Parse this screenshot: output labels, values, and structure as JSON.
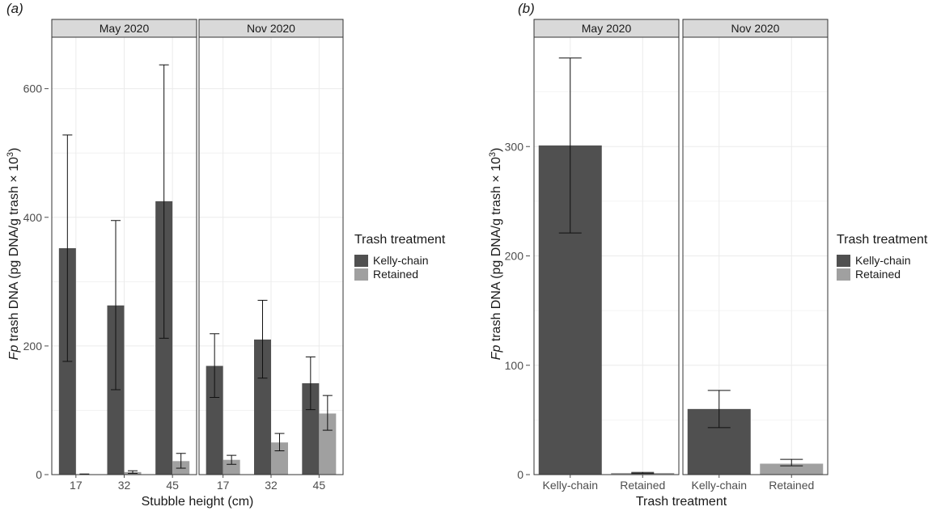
{
  "colors": {
    "kelly": "#505050",
    "retained": "#a0a0a0",
    "strip": "#d9d9d9",
    "grid": "#ebebeb",
    "text": "#1a1a1a",
    "axis": "#4d4d4d"
  },
  "panel_a": {
    "label": "(a)",
    "y_label_italic": "Fp",
    "y_label_rest": " trash DNA (pg DNA/g trash × 10",
    "y_label_sup": "3",
    "y_label_end": ")",
    "x_label": "Stubble height (cm)",
    "legend": {
      "title": "Trash treatment",
      "items": [
        "Kelly-chain",
        "Retained"
      ]
    }
  },
  "panel_b": {
    "label": "(b)",
    "y_label_italic": "Fp",
    "y_label_rest": " trash DNA (pg DNA/g trash × 10",
    "y_label_sup": "3",
    "y_label_end": ")",
    "x_label": "Trash treatment",
    "legend": {
      "title": "Trash treatment",
      "items": [
        "Kelly-chain",
        "Retained"
      ]
    }
  },
  "chart_data": [
    {
      "type": "bar",
      "id": "a",
      "title": "(a)",
      "xlabel": "Stubble height (cm)",
      "ylabel": "Fp trash DNA (pg DNA/g trash × 10^3)",
      "ylim": [
        0,
        680
      ],
      "yticks": [
        0,
        200,
        400,
        600
      ],
      "legend": {
        "title": "Trash treatment",
        "entries": [
          "Kelly-chain",
          "Retained"
        ],
        "position": "right"
      },
      "facets": [
        {
          "strip": "May 2020",
          "categories": [
            "17",
            "32",
            "45"
          ],
          "series": [
            {
              "name": "Kelly-chain",
              "values": [
                352,
                263,
                425
              ],
              "err_low": [
                176,
                132,
                212
              ],
              "err_high": [
                528,
                395,
                637
              ]
            },
            {
              "name": "Retained",
              "values": [
                0.5,
                4,
                21
              ],
              "err_low": [
                0,
                2,
                10
              ],
              "err_high": [
                1,
                6,
                33
              ]
            }
          ]
        },
        {
          "strip": "Nov 2020",
          "categories": [
            "17",
            "32",
            "45"
          ],
          "series": [
            {
              "name": "Kelly-chain",
              "values": [
                169,
                210,
                142
              ],
              "err_low": [
                120,
                150,
                101
              ],
              "err_high": [
                219,
                271,
                183
              ]
            },
            {
              "name": "Retained",
              "values": [
                23,
                50,
                95
              ],
              "err_low": [
                16,
                37,
                69
              ],
              "err_high": [
                30,
                64,
                123
              ]
            }
          ]
        }
      ]
    },
    {
      "type": "bar",
      "id": "b",
      "title": "(b)",
      "xlabel": "Trash treatment",
      "ylabel": "Fp trash DNA (pg DNA/g trash × 10^3)",
      "ylim": [
        0,
        400
      ],
      "yticks": [
        0,
        100,
        200,
        300
      ],
      "legend": {
        "title": "Trash treatment",
        "entries": [
          "Kelly-chain",
          "Retained"
        ],
        "position": "right"
      },
      "facets": [
        {
          "strip": "May 2020",
          "categories": [
            "Kelly-chain",
            "Retained"
          ],
          "series": [
            {
              "name": "Kelly-chain",
              "values": [
                301
              ],
              "err_low": [
                221
              ],
              "err_high": [
                381
              ]
            },
            {
              "name": "Retained",
              "values": [
                1.5
              ],
              "err_low": [
                1
              ],
              "err_high": [
                2
              ]
            }
          ]
        },
        {
          "strip": "Nov 2020",
          "categories": [
            "Kelly-chain",
            "Retained"
          ],
          "series": [
            {
              "name": "Kelly-chain",
              "values": [
                60
              ],
              "err_low": [
                43
              ],
              "err_high": [
                77
              ]
            },
            {
              "name": "Retained",
              "values": [
                10
              ],
              "err_low": [
                8
              ],
              "err_high": [
                14
              ]
            }
          ]
        }
      ]
    }
  ]
}
